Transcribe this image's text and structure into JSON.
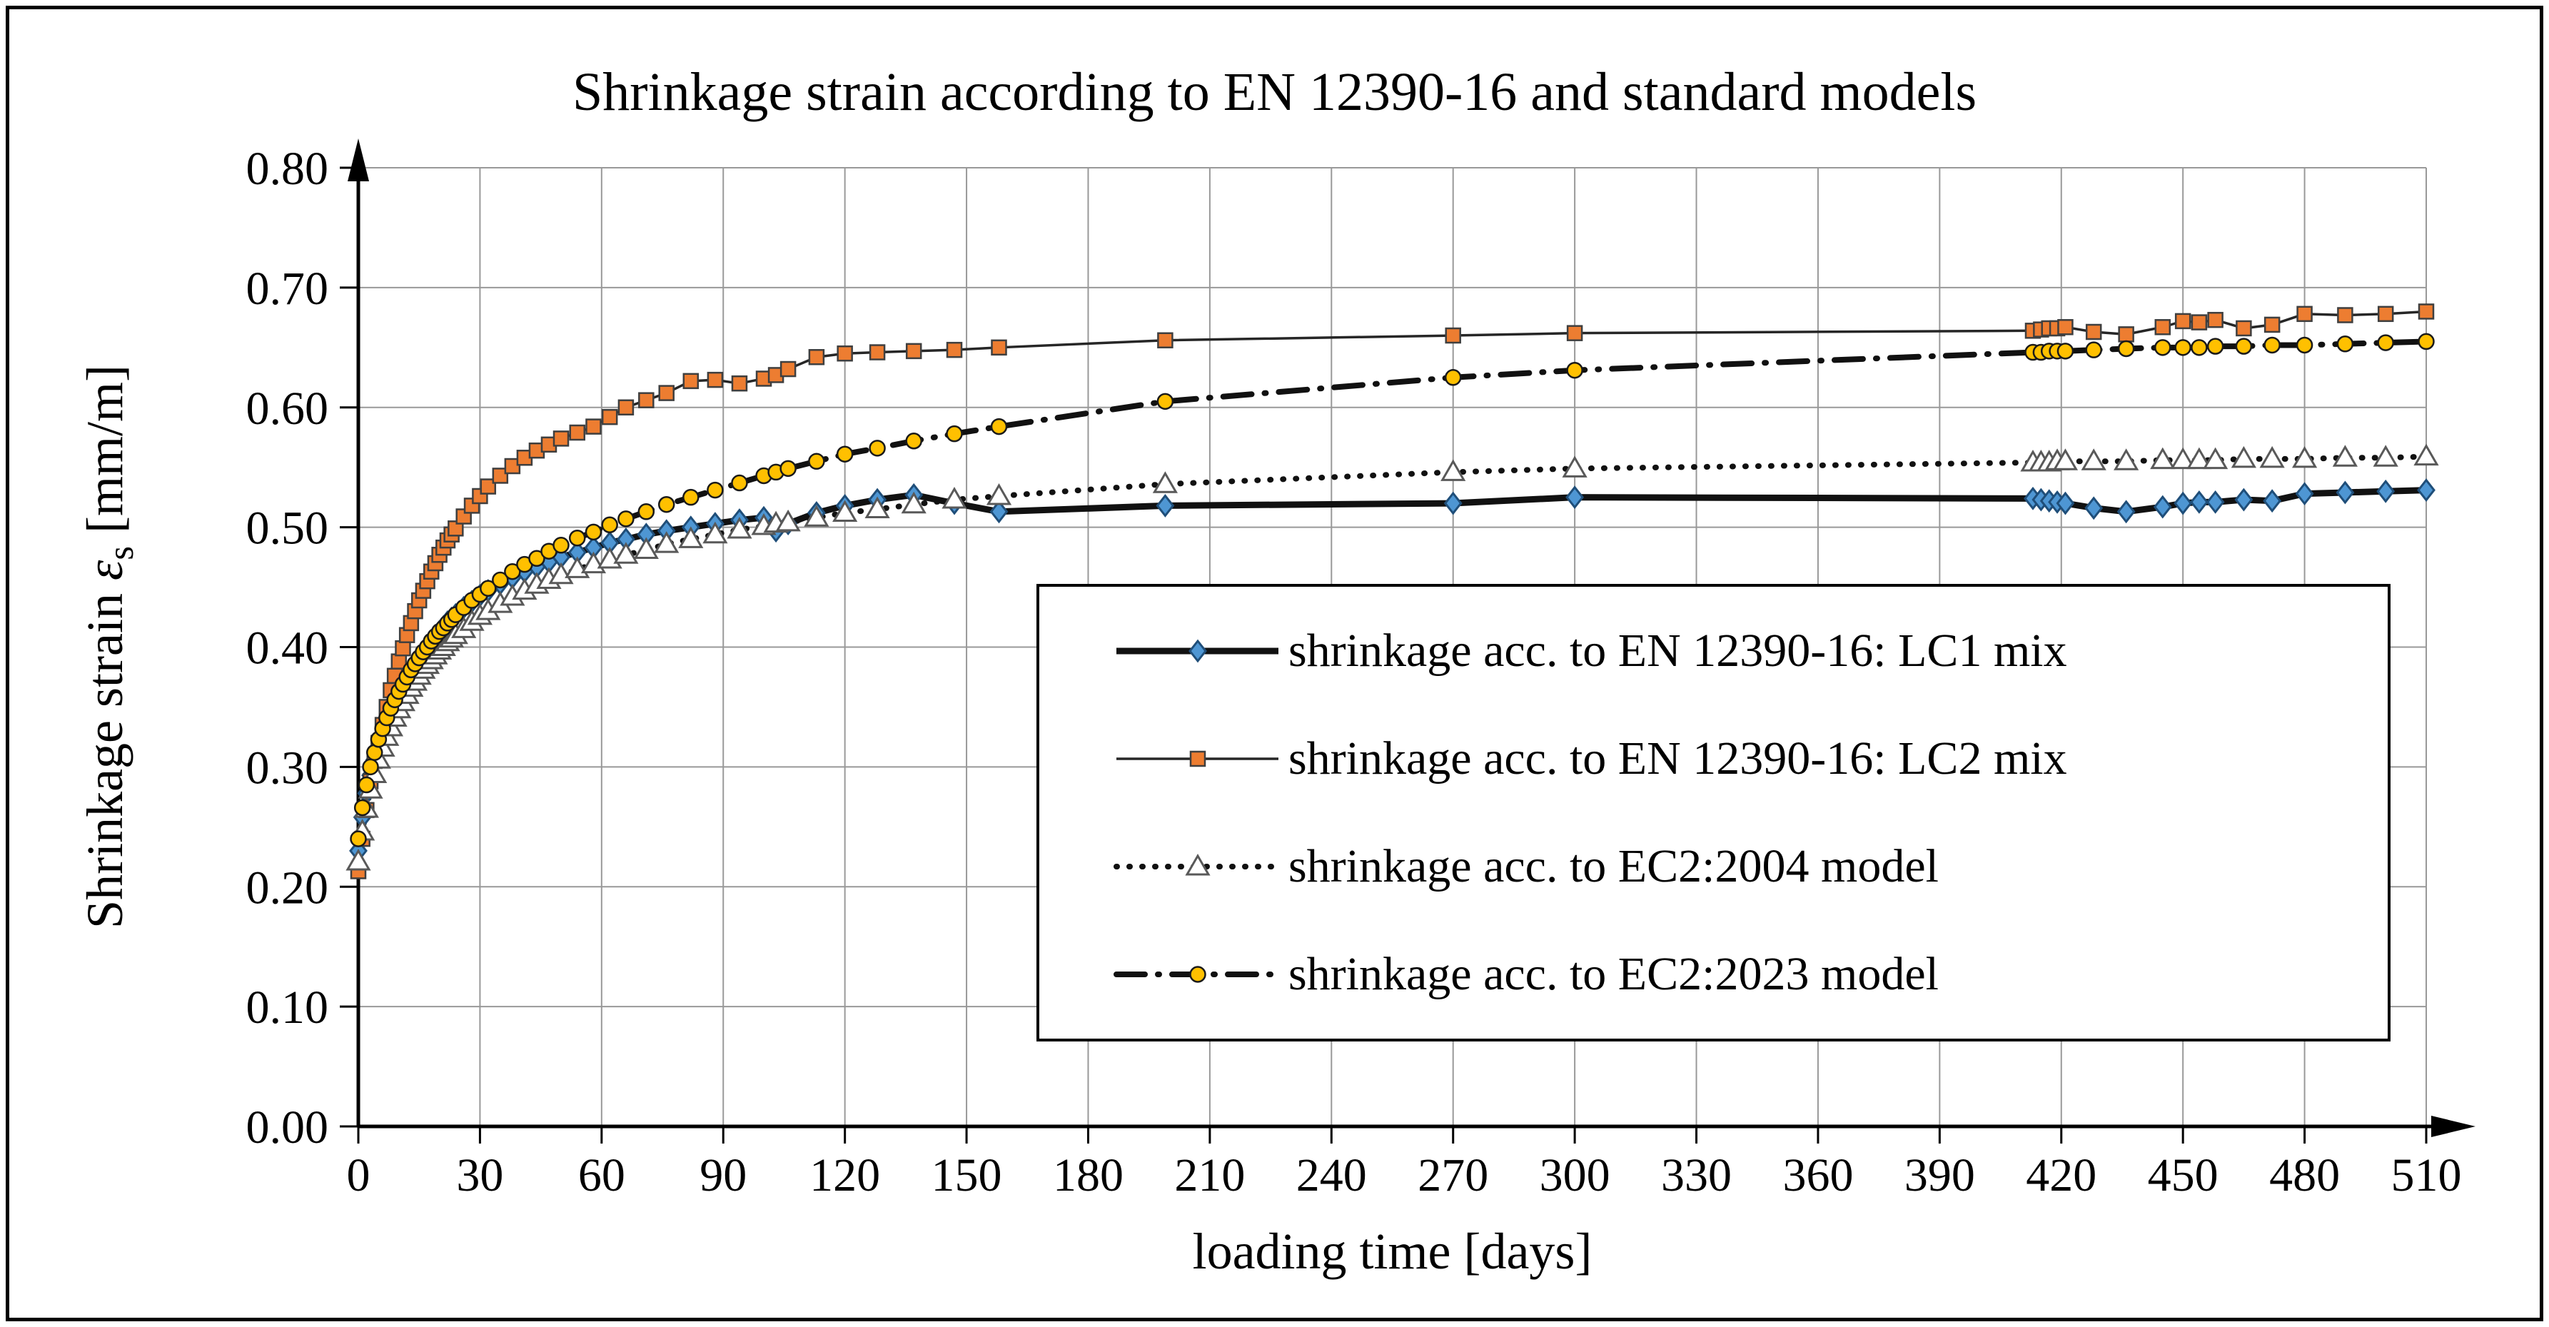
{
  "title": "Shrinkage strain according to EN 12390-16 and standard models",
  "y_axis": {
    "label_prefix": "Shrinkage strain ",
    "epsilon": "ε",
    "epsilon_sub": "s",
    "label_suffix": " [mm/m]",
    "tick_labels": [
      "0.00",
      "0.10",
      "0.20",
      "0.30",
      "0.40",
      "0.50",
      "0.60",
      "0.70",
      "0.80"
    ],
    "min": 0,
    "max": 0.8,
    "step": 0.1
  },
  "x_axis": {
    "label": "loading time [days]",
    "tick_labels": [
      "0",
      "30",
      "60",
      "90",
      "120",
      "150",
      "180",
      "210",
      "240",
      "270",
      "300",
      "330",
      "360",
      "390",
      "420",
      "450",
      "480",
      "510"
    ],
    "min": 0,
    "max": 510,
    "step": 30
  },
  "colors": {
    "grid": "#999999",
    "axis": "#000000",
    "lc1_fill": "#4E96D3",
    "lc1_edge": "#1F4E79",
    "lc2_fill": "#ED7D31",
    "lc2_edge": "#3F3F3F",
    "ec2004_fill": "#FFFFFF",
    "ec2004_edge": "#595959",
    "ec2023_fill": "#FFC000",
    "ec2023_edge": "#1A1A1A"
  },
  "chart_data": {
    "type": "line",
    "title": "Shrinkage strain according to EN 12390-16 and standard models",
    "xlabel": "loading time [days]",
    "ylabel": "Shrinkage strain εs [mm/m]",
    "xlim": [
      0,
      510
    ],
    "ylim": [
      0,
      0.8
    ],
    "grid": true,
    "legend_position": "inside lower right",
    "x": [
      0,
      1,
      2,
      3,
      4,
      5,
      6,
      7,
      8,
      9,
      10,
      11,
      12,
      13,
      14,
      15,
      16,
      17,
      18,
      19,
      20,
      21,
      22,
      23,
      24,
      26,
      28,
      30,
      32,
      35,
      38,
      41,
      44,
      47,
      50,
      54,
      58,
      62,
      66,
      71,
      76,
      82,
      88,
      94,
      100,
      103,
      106,
      113,
      120,
      128,
      137,
      147,
      158,
      199,
      270,
      300,
      413,
      415,
      417,
      419,
      421,
      428,
      436,
      445,
      450,
      454,
      458,
      465,
      472,
      480,
      490,
      500,
      510
    ],
    "series": [
      {
        "name": "shrinkage acc. to EN 12390-16: LC1 mix",
        "marker": "diamond",
        "marker_fill": "#4E96D3",
        "marker_stroke": "#1F4E79",
        "line": "solid",
        "line_width": 9,
        "line_color": "#111111",
        "values": [
          0.23,
          0.258,
          0.278,
          0.293,
          0.306,
          0.317,
          0.327,
          0.336,
          0.344,
          0.352,
          0.359,
          0.366,
          0.372,
          0.378,
          0.384,
          0.39,
          0.395,
          0.4,
          0.405,
          0.409,
          0.413,
          0.417,
          0.421,
          0.424,
          0.427,
          0.433,
          0.438,
          0.443,
          0.447,
          0.453,
          0.458,
          0.463,
          0.467,
          0.471,
          0.475,
          0.479,
          0.483,
          0.487,
          0.49,
          0.494,
          0.497,
          0.5,
          0.503,
          0.506,
          0.508,
          0.497,
          0.503,
          0.512,
          0.518,
          0.523,
          0.527,
          0.52,
          0.513,
          0.518,
          0.52,
          0.525,
          0.524,
          0.523,
          0.522,
          0.521,
          0.52,
          0.516,
          0.513,
          0.517,
          0.52,
          0.521,
          0.521,
          0.523,
          0.522,
          0.528,
          0.529,
          0.53,
          0.531
        ]
      },
      {
        "name": "shrinkage acc. to EN 12390-16: LC2 mix",
        "marker": "square",
        "marker_fill": "#ED7D31",
        "marker_stroke": "#3F3F3F",
        "line": "solid",
        "line_width": 3.5,
        "line_color": "#262626",
        "values": [
          0.213,
          0.24,
          0.264,
          0.288,
          0.305,
          0.32,
          0.335,
          0.35,
          0.364,
          0.376,
          0.388,
          0.399,
          0.41,
          0.42,
          0.43,
          0.439,
          0.447,
          0.455,
          0.463,
          0.47,
          0.477,
          0.483,
          0.489,
          0.494,
          0.499,
          0.509,
          0.518,
          0.526,
          0.534,
          0.543,
          0.551,
          0.558,
          0.564,
          0.569,
          0.574,
          0.579,
          0.584,
          0.592,
          0.6,
          0.606,
          0.612,
          0.622,
          0.623,
          0.62,
          0.624,
          0.627,
          0.632,
          0.642,
          0.645,
          0.646,
          0.647,
          0.648,
          0.65,
          0.656,
          0.66,
          0.662,
          0.664,
          0.665,
          0.666,
          0.666,
          0.667,
          0.663,
          0.661,
          0.667,
          0.672,
          0.671,
          0.673,
          0.666,
          0.669,
          0.678,
          0.677,
          0.678,
          0.68
        ]
      },
      {
        "name": "shrinkage acc. to EC2:2004 model",
        "marker": "triangle",
        "marker_fill": "#FFFFFF",
        "marker_stroke": "#595959",
        "line": "dotted",
        "line_width": 8,
        "line_color": "#111111",
        "values": [
          0.221,
          0.246,
          0.265,
          0.281,
          0.294,
          0.306,
          0.316,
          0.325,
          0.333,
          0.341,
          0.348,
          0.354,
          0.36,
          0.366,
          0.371,
          0.376,
          0.381,
          0.385,
          0.389,
          0.393,
          0.397,
          0.4,
          0.404,
          0.407,
          0.41,
          0.415,
          0.421,
          0.426,
          0.43,
          0.436,
          0.442,
          0.447,
          0.452,
          0.456,
          0.46,
          0.465,
          0.469,
          0.473,
          0.477,
          0.481,
          0.486,
          0.49,
          0.494,
          0.498,
          0.501,
          0.503,
          0.504,
          0.508,
          0.512,
          0.515,
          0.519,
          0.523,
          0.526,
          0.536,
          0.546,
          0.549,
          0.554,
          0.554,
          0.554,
          0.555,
          0.555,
          0.555,
          0.555,
          0.556,
          0.556,
          0.556,
          0.556,
          0.557,
          0.557,
          0.557,
          0.558,
          0.558,
          0.559
        ]
      },
      {
        "name": "shrinkage acc. to EC2:2023 model",
        "marker": "circle",
        "marker_fill": "#FFC000",
        "marker_stroke": "#1A1A1A",
        "line": "dashdot",
        "line_width": 8,
        "line_color": "#111111",
        "values": [
          0.24,
          0.266,
          0.285,
          0.3,
          0.312,
          0.323,
          0.332,
          0.341,
          0.349,
          0.356,
          0.363,
          0.369,
          0.375,
          0.381,
          0.386,
          0.391,
          0.396,
          0.4,
          0.405,
          0.409,
          0.413,
          0.416,
          0.42,
          0.423,
          0.427,
          0.433,
          0.439,
          0.444,
          0.449,
          0.456,
          0.463,
          0.469,
          0.474,
          0.48,
          0.485,
          0.491,
          0.496,
          0.502,
          0.507,
          0.513,
          0.519,
          0.525,
          0.531,
          0.537,
          0.543,
          0.546,
          0.549,
          0.555,
          0.561,
          0.566,
          0.572,
          0.578,
          0.584,
          0.605,
          0.625,
          0.631,
          0.646,
          0.646,
          0.647,
          0.647,
          0.647,
          0.648,
          0.649,
          0.65,
          0.65,
          0.65,
          0.651,
          0.651,
          0.652,
          0.652,
          0.653,
          0.654,
          0.655
        ]
      }
    ]
  }
}
